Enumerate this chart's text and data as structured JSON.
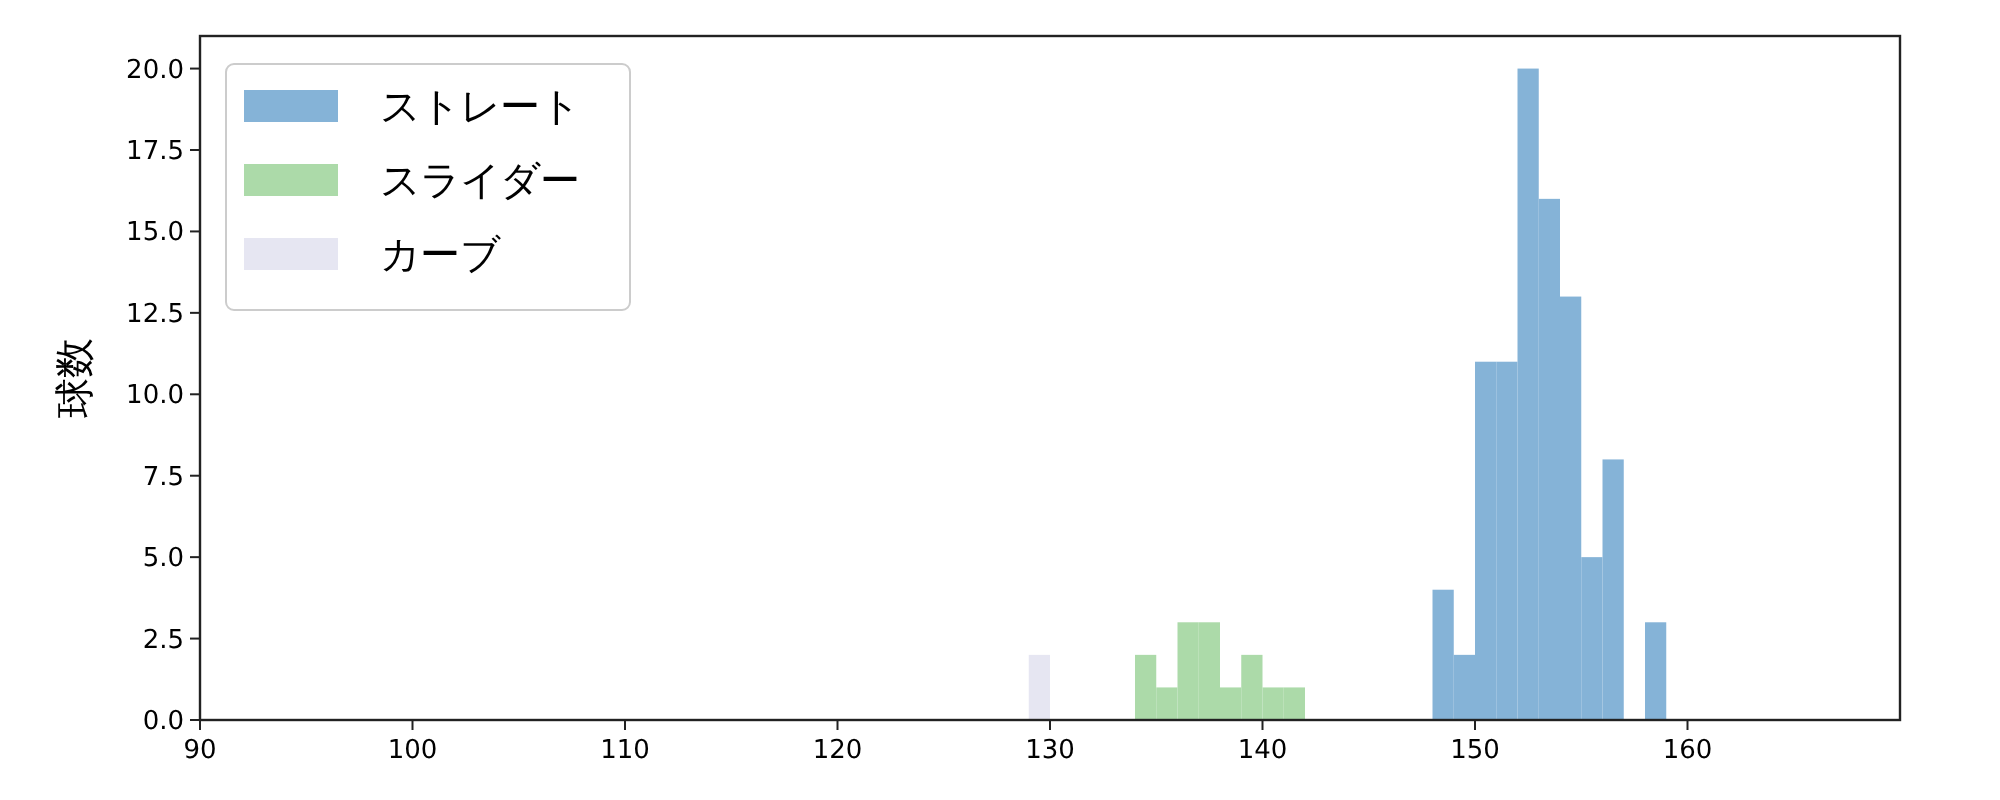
{
  "chart_data": {
    "type": "histogram",
    "ylabel": "球数",
    "legend": "top left",
    "grid": false,
    "xlim": [
      90,
      170
    ],
    "xticks": [
      90,
      100,
      110,
      120,
      130,
      140,
      150,
      160
    ],
    "ylim": [
      0,
      21
    ],
    "yticks": [
      {
        "value": 0,
        "label": "0.0"
      },
      2.5,
      {
        "value": 5,
        "label": "5.0"
      },
      7.5,
      {
        "value": 10,
        "label": "10.0"
      },
      12.5,
      {
        "value": 15,
        "label": "15.0"
      },
      17.5,
      {
        "value": 20,
        "label": "20.0"
      }
    ],
    "bins": [
      129,
      130,
      131,
      132,
      133,
      134,
      135,
      136,
      137,
      138,
      139,
      140,
      141,
      142,
      143,
      144,
      145,
      146,
      147,
      148,
      149,
      150,
      151,
      152,
      153,
      154,
      155,
      156,
      157,
      158,
      159
    ],
    "series": [
      {
        "name": "ストレート",
        "color": "#85b3d7",
        "values": [
          0,
          0,
          0,
          0,
          0,
          0,
          0,
          0,
          0,
          0,
          0,
          0,
          0,
          0,
          0,
          0,
          0,
          0,
          0,
          4,
          2,
          11,
          11,
          20,
          16,
          13,
          5,
          8,
          0,
          3
        ]
      },
      {
        "name": "スライダー",
        "color": "#acdaa9",
        "values": [
          0,
          0,
          0,
          0,
          0,
          2,
          1,
          3,
          3,
          1,
          2,
          1,
          1,
          0,
          0,
          0,
          0,
          0,
          0,
          0,
          0,
          0,
          0,
          0,
          0,
          0,
          0,
          0,
          0,
          0
        ]
      },
      {
        "name": "カーブ",
        "color": "#e6e6f2",
        "values": [
          2,
          0,
          0,
          0,
          0,
          0,
          0,
          0,
          0,
          0,
          0,
          0,
          0,
          0,
          0,
          0,
          0,
          0,
          0,
          0,
          0,
          0,
          0,
          0,
          0,
          0,
          0,
          0,
          0,
          0
        ]
      }
    ]
  }
}
